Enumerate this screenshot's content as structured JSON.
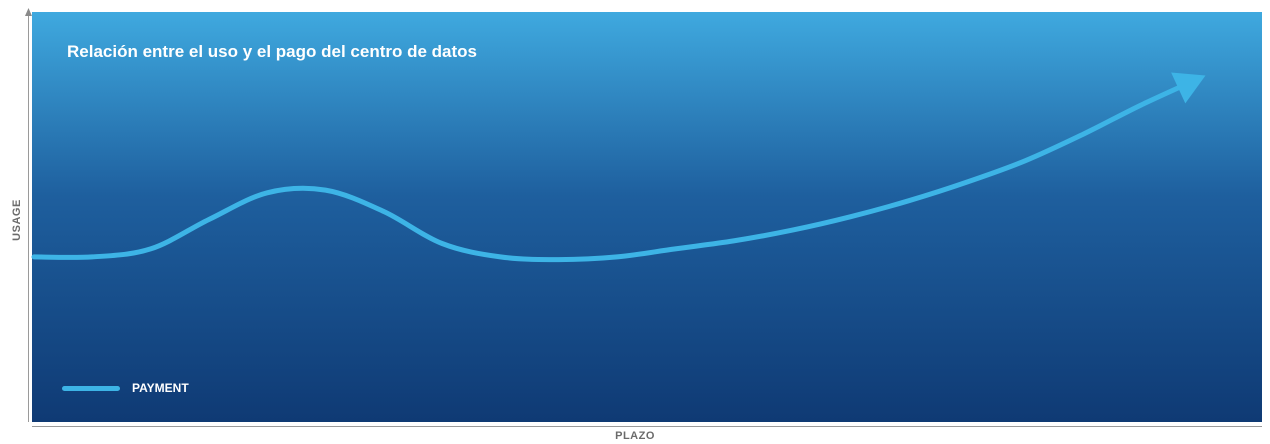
{
  "chart_data": {
    "type": "line",
    "title": "Relación entre el uso y el pago del centro de datos",
    "xlabel": "PLAZO",
    "ylabel": "USAGE",
    "grid": false,
    "legend_placement": "bottom-left",
    "series": [
      {
        "name": "PAYMENT",
        "color": "#3db4e6",
        "x": [
          0,
          0.05,
          0.1,
          0.15,
          0.2,
          0.25,
          0.3,
          0.35,
          0.4,
          0.45,
          0.5,
          0.55,
          0.6,
          0.65,
          0.7,
          0.75,
          0.8,
          0.85,
          0.9,
          0.95,
          1.0
        ],
        "values": [
          0.33,
          0.33,
          0.36,
          0.47,
          0.57,
          0.58,
          0.5,
          0.38,
          0.33,
          0.32,
          0.33,
          0.36,
          0.39,
          0.43,
          0.48,
          0.54,
          0.61,
          0.69,
          0.79,
          0.9,
          1.0
        ]
      }
    ],
    "colors": {
      "background_top": "#3fa9df",
      "background_bottom": "#0f3a74",
      "axis": "#9a9a9a"
    }
  }
}
